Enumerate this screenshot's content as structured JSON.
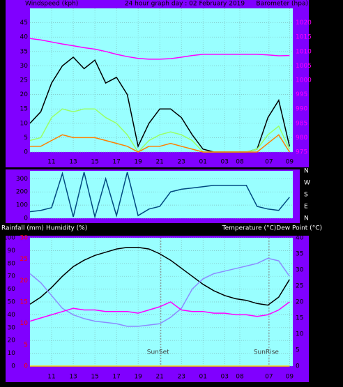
{
  "chart_data": [
    {
      "type": "line",
      "title": "24 hour graph day : 02 February 2019",
      "y_label": "Windspeed (kph)",
      "y2_label": "Barometer (hpa)",
      "x": [
        0,
        1,
        2,
        3,
        4,
        5,
        6,
        7,
        8,
        9,
        10,
        11,
        12,
        13,
        14,
        15,
        16,
        17,
        18,
        19,
        20,
        21,
        22,
        23,
        24
      ],
      "xlim": [
        0,
        24.3
      ],
      "xticks": [
        {
          "value": 2,
          "label": "11"
        },
        {
          "value": 4,
          "label": "13"
        },
        {
          "value": 6,
          "label": "15"
        },
        {
          "value": 8,
          "label": "17"
        },
        {
          "value": 10,
          "label": "19"
        },
        {
          "value": 12,
          "label": "21"
        },
        {
          "value": 14,
          "label": "23"
        },
        {
          "value": 16,
          "label": "01"
        },
        {
          "value": 18,
          "label": "03"
        },
        {
          "value": 19.4,
          "label": "08"
        },
        {
          "value": 22.1,
          "label": "07"
        },
        {
          "value": 24,
          "label": "09"
        }
      ],
      "ylim": [
        0,
        50
      ],
      "yticks": [
        0,
        5,
        10,
        15,
        20,
        25,
        30,
        35,
        40,
        45
      ],
      "y2lim": [
        975,
        1025
      ],
      "y2ticks": [
        975,
        980,
        985,
        990,
        995,
        1000,
        1005,
        1010,
        1015,
        1020
      ],
      "grid": true,
      "series": [
        {
          "color": "#000000",
          "axis": "y",
          "values": [
            10,
            14,
            24,
            30,
            33,
            29,
            32,
            24,
            26,
            20,
            2,
            10,
            15,
            15,
            12,
            6,
            1,
            0,
            0,
            0,
            0,
            1,
            12,
            18,
            2
          ]
        },
        {
          "color": "#99ff66",
          "axis": "y",
          "values": [
            4,
            5,
            12,
            15,
            14,
            15,
            15,
            12,
            10,
            6,
            0,
            4,
            6,
            7,
            6,
            4,
            0,
            0,
            0,
            0,
            0,
            1,
            6,
            9,
            1
          ]
        },
        {
          "color": "#ff8000",
          "axis": "y",
          "values": [
            2,
            2,
            4,
            6,
            5,
            5,
            5,
            4,
            3,
            2,
            0,
            2,
            2,
            3,
            2,
            1,
            0,
            0,
            0,
            0,
            0,
            0,
            3,
            6,
            0
          ]
        },
        {
          "color": "#ff00ff",
          "axis": "y2",
          "values": [
            1014.5,
            1014,
            1013.3,
            1012.6,
            1012,
            1011.3,
            1010.8,
            1010,
            1009,
            1008.2,
            1007.6,
            1007.3,
            1007.3,
            1007.5,
            1008,
            1008.6,
            1009,
            1009,
            1009,
            1009,
            1009,
            1009,
            1008.8,
            1008.5,
            1008.6
          ]
        }
      ]
    },
    {
      "type": "line",
      "x": [
        0,
        1,
        2,
        3,
        4,
        5,
        6,
        7,
        8,
        9,
        10,
        11,
        12,
        13,
        14,
        15,
        16,
        17,
        18,
        19,
        20,
        21,
        22,
        23,
        24
      ],
      "xlim": [
        0,
        24.3
      ],
      "ylim": [
        0,
        360
      ],
      "yticks": [
        0,
        100,
        200,
        300
      ],
      "y2lim": [
        0,
        360
      ],
      "y2ticks": [
        {
          "value": 360,
          "label": "N"
        },
        {
          "value": 270,
          "label": "W"
        },
        {
          "value": 180,
          "label": "S"
        },
        {
          "value": 90,
          "label": "E"
        },
        {
          "value": 0,
          "label": "N"
        }
      ],
      "grid": true,
      "series": [
        {
          "color": "#004a80",
          "axis": "y",
          "values": [
            50,
            60,
            80,
            340,
            10,
            350,
            10,
            300,
            20,
            350,
            20,
            70,
            90,
            200,
            220,
            230,
            240,
            250,
            250,
            250,
            250,
            90,
            70,
            60,
            160
          ]
        }
      ]
    },
    {
      "type": "line",
      "y3_label": "Rainfall (mm)",
      "y_label": "Humidity (%)",
      "y2_label": "Temperature (°C)Dew Point (°C)",
      "x": [
        0,
        1,
        2,
        3,
        4,
        5,
        6,
        7,
        8,
        9,
        10,
        11,
        12,
        13,
        14,
        15,
        16,
        17,
        18,
        19,
        20,
        21,
        22,
        23,
        24
      ],
      "xlim": [
        0,
        24.3
      ],
      "xticks": [
        {
          "value": 2,
          "label": "11"
        },
        {
          "value": 4,
          "label": "13"
        },
        {
          "value": 6,
          "label": "15"
        },
        {
          "value": 8,
          "label": "17"
        },
        {
          "value": 10,
          "label": "19"
        },
        {
          "value": 12,
          "label": "21"
        },
        {
          "value": 14,
          "label": "23"
        },
        {
          "value": 16,
          "label": "01"
        },
        {
          "value": 18,
          "label": "03"
        },
        {
          "value": 19.4,
          "label": "08"
        },
        {
          "value": 22.1,
          "label": "07"
        },
        {
          "value": 24,
          "label": "09"
        }
      ],
      "ylim": [
        0,
        100
      ],
      "yticks": [
        0,
        10,
        20,
        30,
        40,
        50,
        60,
        70,
        80,
        90,
        100
      ],
      "y2lim": [
        0,
        40
      ],
      "y2ticks": [
        0,
        5,
        10,
        15,
        20,
        25,
        30,
        35,
        40
      ],
      "y3lim": [
        0,
        30
      ],
      "y3ticks": [
        0,
        5,
        10,
        15,
        20,
        25,
        30
      ],
      "grid": true,
      "annotations": [
        {
          "text": "SunSet",
          "x": 12.1
        },
        {
          "text": "SunRise",
          "x": 22.1
        }
      ],
      "series": [
        {
          "color": "#000000",
          "axis": "y2",
          "values": [
            19.3,
            21.5,
            24.5,
            28,
            31,
            33,
            34.5,
            35.5,
            36.5,
            37,
            37,
            36.5,
            35,
            33,
            30.5,
            28,
            25.5,
            23.5,
            22,
            21,
            20.5,
            19.5,
            19,
            21.5,
            27
          ]
        },
        {
          "color": "#8c8cff",
          "axis": "y",
          "values": [
            72,
            65,
            55,
            45,
            40,
            37,
            35,
            34,
            33,
            31,
            31,
            32,
            33,
            38,
            45,
            60,
            68,
            72,
            74,
            76,
            78,
            80,
            84,
            82,
            70
          ]
        },
        {
          "color": "#ff00ff",
          "axis": "y2",
          "values": [
            14,
            15,
            16,
            17,
            18,
            17.5,
            17.5,
            17,
            17,
            17,
            16.5,
            17.5,
            18.5,
            20,
            17.5,
            17,
            17,
            16.5,
            16.5,
            16,
            16,
            15.5,
            16,
            17.5,
            20
          ]
        },
        {
          "color": "#ffcc00",
          "axis": "y3",
          "values": [
            0,
            0,
            0,
            0,
            0,
            0,
            0,
            0,
            0,
            0,
            0,
            0,
            0,
            0,
            0,
            0,
            0,
            0,
            0,
            0,
            0,
            0,
            0,
            0,
            0
          ]
        }
      ]
    }
  ]
}
